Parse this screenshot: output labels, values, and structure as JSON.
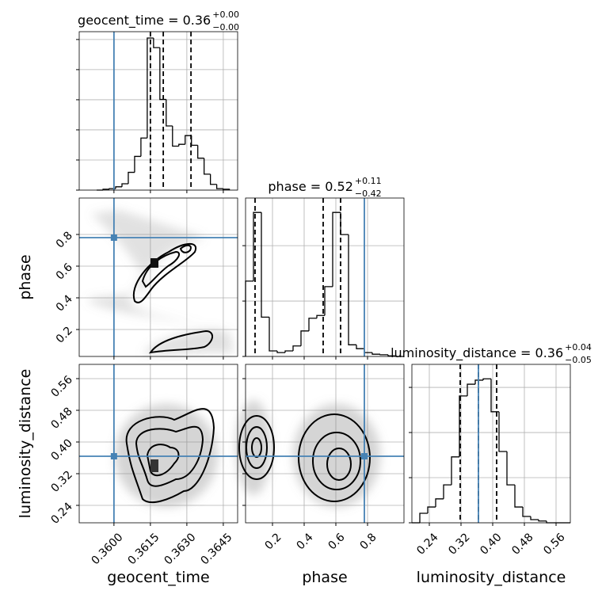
{
  "chart_data": {
    "type": "corner",
    "truth_color": "#4682b4",
    "grid": true,
    "params": [
      {
        "name": "geocent_time",
        "lim": [
          0.35857,
          0.36509
        ],
        "ticks": [
          {
            "value": 0.36,
            "label": "0.3600"
          },
          0.3615,
          {
            "value": 0.363,
            "label": "0.3630"
          },
          0.3645
        ],
        "truth": 0.36,
        "title": {
          "text": "geocent_time = 0.36",
          "plus": "+0.00",
          "minus": "−0.00"
        },
        "hist": {
          "bins": [
            0.35929,
            0.35955,
            0.35981,
            0.36007,
            0.36033,
            0.36059,
            0.36085,
            0.36111,
            0.36137,
            0.36163,
            0.36189,
            0.36215,
            0.36241,
            0.36267,
            0.36293,
            0.36319,
            0.36345,
            0.36371,
            0.36397,
            0.36423,
            0.36449,
            0.36475
          ],
          "values": [
            0,
            3,
            5,
            11,
            21,
            59,
            112,
            173,
            505,
            473,
            301,
            213,
            146,
            152,
            181,
            149,
            106,
            53,
            19,
            5,
            3
          ],
          "ylim": [
            0,
            526
          ],
          "yticks": [
            0,
            100,
            200,
            300,
            400,
            500
          ],
          "quantiles": [
            0.3615,
            0.36203,
            0.36317
          ]
        }
      },
      {
        "name": "phase",
        "lim": [
          0.03,
          1.03
        ],
        "ticks": [
          0.2,
          0.4,
          0.6,
          0.8
        ],
        "truth": 0.78,
        "title": {
          "text": "phase = 0.52",
          "plus": "+0.11",
          "minus": "−0.42"
        },
        "hist": {
          "bins": [
            0.03,
            0.08,
            0.13,
            0.18,
            0.23,
            0.28,
            0.33,
            0.38,
            0.43,
            0.48,
            0.53,
            0.58,
            0.63,
            0.68,
            0.73,
            0.78,
            0.83,
            0.88,
            0.93,
            0.98,
            1.03
          ],
          "values": [
            136,
            260,
            71,
            10,
            7,
            10,
            19,
            46,
            69,
            74,
            126,
            260,
            220,
            21,
            14,
            7,
            4,
            3,
            1,
            0
          ],
          "ylim": [
            0,
            286
          ],
          "yticks": [
            0,
            100,
            200
          ],
          "quantiles": [
            0.09,
            0.52,
            0.63
          ]
        }
      },
      {
        "name": "luminosity_distance",
        "lim": [
          0.196,
          0.596
        ],
        "ticks": [
          0.24,
          0.32,
          {
            "value": 0.4,
            "label": "0.40"
          },
          0.48,
          0.56
        ],
        "truth": 0.364,
        "title": {
          "text": "luminosity_distance = 0.36",
          "plus": "+0.04",
          "minus": "−0.05"
        },
        "hist": {
          "bins": [
            0.196,
            0.216,
            0.236,
            0.256,
            0.276,
            0.296,
            0.316,
            0.336,
            0.356,
            0.376,
            0.396,
            0.416,
            0.436,
            0.456,
            0.476,
            0.496,
            0.516,
            0.536,
            0.556,
            0.576,
            0.596
          ],
          "values": [
            0,
            21,
            35,
            53,
            84,
            146,
            281,
            307,
            316,
            319,
            246,
            158,
            84,
            35,
            14,
            7,
            4,
            0,
            0,
            0
          ],
          "ylim": [
            0,
            351
          ],
          "yticks": [
            0,
            100,
            200,
            300
          ],
          "quantiles": [
            0.318,
            0.364,
            0.41
          ]
        }
      }
    ]
  }
}
